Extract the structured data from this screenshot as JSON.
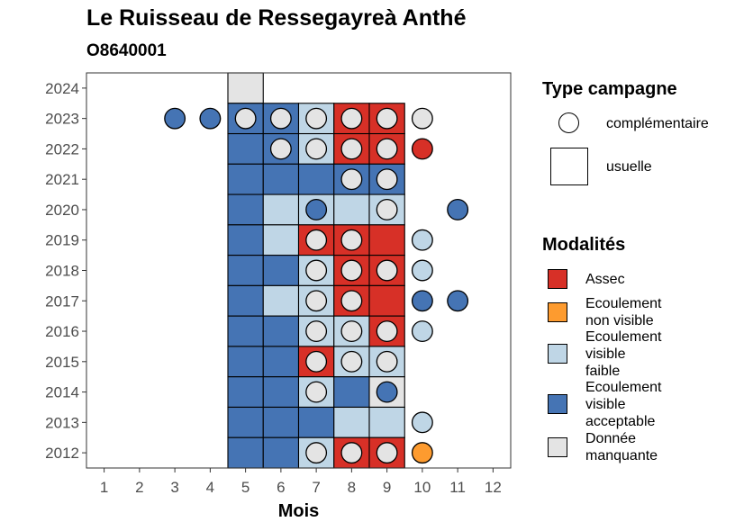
{
  "header": {
    "title": "Le Ruisseau de Ressegayreà Anthé",
    "subtitle": "O8640001"
  },
  "colors": {
    "Assec": "#d73027",
    "Ecoulement non visible": "#fd9b2f",
    "Ecoulement visible faible": "#bfd6e6",
    "Ecoulement visible acceptable": "#4574b4",
    "Donnée manquante": "#e4e4e4"
  },
  "legend_type": {
    "title": "Type campagne",
    "items": [
      {
        "shape": "circle",
        "label": "complémentaire"
      },
      {
        "shape": "square",
        "label": "usuelle"
      }
    ]
  },
  "legend_modalites": {
    "title": "Modalités",
    "items": [
      {
        "key": "Assec",
        "label": "Assec"
      },
      {
        "key": "Ecoulement non visible",
        "label": "Ecoulement\nnon visible"
      },
      {
        "key": "Ecoulement visible faible",
        "label": "Ecoulement\nvisible\nfaible"
      },
      {
        "key": "Ecoulement visible acceptable",
        "label": "Ecoulement\nvisible\nacceptable"
      },
      {
        "key": "Donnée manquante",
        "label": "Donnée\nmanquante"
      }
    ]
  },
  "chart_data": {
    "type": "heatmap",
    "xlabel": "Mois",
    "ylabel": "",
    "x_ticks": [
      1,
      2,
      3,
      4,
      5,
      6,
      7,
      8,
      9,
      10,
      11,
      12
    ],
    "y_ticks": [
      2012,
      2013,
      2014,
      2015,
      2016,
      2017,
      2018,
      2019,
      2020,
      2021,
      2022,
      2023,
      2024
    ],
    "xlim": [
      0.5,
      12.5
    ],
    "ylim": [
      2011.5,
      2024.5
    ],
    "usuelle": [
      {
        "year": 2024,
        "month": 5,
        "value": "Donnée manquante"
      },
      {
        "year": 2023,
        "month": 5,
        "value": "Ecoulement visible acceptable"
      },
      {
        "year": 2023,
        "month": 6,
        "value": "Ecoulement visible acceptable"
      },
      {
        "year": 2023,
        "month": 7,
        "value": "Ecoulement visible faible"
      },
      {
        "year": 2023,
        "month": 8,
        "value": "Assec"
      },
      {
        "year": 2023,
        "month": 9,
        "value": "Assec"
      },
      {
        "year": 2022,
        "month": 5,
        "value": "Ecoulement visible acceptable"
      },
      {
        "year": 2022,
        "month": 6,
        "value": "Ecoulement visible acceptable"
      },
      {
        "year": 2022,
        "month": 7,
        "value": "Ecoulement visible faible"
      },
      {
        "year": 2022,
        "month": 8,
        "value": "Assec"
      },
      {
        "year": 2022,
        "month": 9,
        "value": "Assec"
      },
      {
        "year": 2021,
        "month": 5,
        "value": "Ecoulement visible acceptable"
      },
      {
        "year": 2021,
        "month": 6,
        "value": "Ecoulement visible acceptable"
      },
      {
        "year": 2021,
        "month": 7,
        "value": "Ecoulement visible acceptable"
      },
      {
        "year": 2021,
        "month": 8,
        "value": "Ecoulement visible acceptable"
      },
      {
        "year": 2021,
        "month": 9,
        "value": "Ecoulement visible acceptable"
      },
      {
        "year": 2020,
        "month": 5,
        "value": "Ecoulement visible acceptable"
      },
      {
        "year": 2020,
        "month": 6,
        "value": "Ecoulement visible faible"
      },
      {
        "year": 2020,
        "month": 7,
        "value": "Ecoulement visible faible"
      },
      {
        "year": 2020,
        "month": 8,
        "value": "Ecoulement visible faible"
      },
      {
        "year": 2020,
        "month": 9,
        "value": "Ecoulement visible faible"
      },
      {
        "year": 2019,
        "month": 5,
        "value": "Ecoulement visible acceptable"
      },
      {
        "year": 2019,
        "month": 6,
        "value": "Ecoulement visible faible"
      },
      {
        "year": 2019,
        "month": 7,
        "value": "Assec"
      },
      {
        "year": 2019,
        "month": 8,
        "value": "Assec"
      },
      {
        "year": 2019,
        "month": 9,
        "value": "Assec"
      },
      {
        "year": 2018,
        "month": 5,
        "value": "Ecoulement visible acceptable"
      },
      {
        "year": 2018,
        "month": 6,
        "value": "Ecoulement visible acceptable"
      },
      {
        "year": 2018,
        "month": 7,
        "value": "Ecoulement visible faible"
      },
      {
        "year": 2018,
        "month": 8,
        "value": "Assec"
      },
      {
        "year": 2018,
        "month": 9,
        "value": "Assec"
      },
      {
        "year": 2017,
        "month": 5,
        "value": "Ecoulement visible acceptable"
      },
      {
        "year": 2017,
        "month": 6,
        "value": "Ecoulement visible faible"
      },
      {
        "year": 2017,
        "month": 7,
        "value": "Ecoulement visible faible"
      },
      {
        "year": 2017,
        "month": 8,
        "value": "Assec"
      },
      {
        "year": 2017,
        "month": 9,
        "value": "Assec"
      },
      {
        "year": 2016,
        "month": 5,
        "value": "Ecoulement visible acceptable"
      },
      {
        "year": 2016,
        "month": 6,
        "value": "Ecoulement visible acceptable"
      },
      {
        "year": 2016,
        "month": 7,
        "value": "Ecoulement visible faible"
      },
      {
        "year": 2016,
        "month": 8,
        "value": "Ecoulement visible faible"
      },
      {
        "year": 2016,
        "month": 9,
        "value": "Assec"
      },
      {
        "year": 2015,
        "month": 5,
        "value": "Ecoulement visible acceptable"
      },
      {
        "year": 2015,
        "month": 6,
        "value": "Ecoulement visible acceptable"
      },
      {
        "year": 2015,
        "month": 7,
        "value": "Assec"
      },
      {
        "year": 2015,
        "month": 8,
        "value": "Ecoulement visible faible"
      },
      {
        "year": 2015,
        "month": 9,
        "value": "Ecoulement visible faible"
      },
      {
        "year": 2014,
        "month": 5,
        "value": "Ecoulement visible acceptable"
      },
      {
        "year": 2014,
        "month": 6,
        "value": "Ecoulement visible acceptable"
      },
      {
        "year": 2014,
        "month": 7,
        "value": "Ecoulement visible faible"
      },
      {
        "year": 2014,
        "month": 8,
        "value": "Ecoulement visible acceptable"
      },
      {
        "year": 2014,
        "month": 9,
        "value": "Donnée manquante"
      },
      {
        "year": 2013,
        "month": 5,
        "value": "Ecoulement visible acceptable"
      },
      {
        "year": 2013,
        "month": 6,
        "value": "Ecoulement visible acceptable"
      },
      {
        "year": 2013,
        "month": 7,
        "value": "Ecoulement visible acceptable"
      },
      {
        "year": 2013,
        "month": 8,
        "value": "Ecoulement visible faible"
      },
      {
        "year": 2013,
        "month": 9,
        "value": "Ecoulement visible faible"
      },
      {
        "year": 2012,
        "month": 5,
        "value": "Ecoulement visible acceptable"
      },
      {
        "year": 2012,
        "month": 6,
        "value": "Ecoulement visible acceptable"
      },
      {
        "year": 2012,
        "month": 7,
        "value": "Ecoulement visible faible"
      },
      {
        "year": 2012,
        "month": 8,
        "value": "Assec"
      },
      {
        "year": 2012,
        "month": 9,
        "value": "Assec"
      }
    ],
    "complementaire": [
      {
        "year": 2023,
        "month": 3,
        "value": "Ecoulement visible acceptable"
      },
      {
        "year": 2023,
        "month": 4,
        "value": "Ecoulement visible acceptable"
      },
      {
        "year": 2023,
        "month": 5,
        "value": "Donnée manquante"
      },
      {
        "year": 2023,
        "month": 6,
        "value": "Donnée manquante"
      },
      {
        "year": 2023,
        "month": 7,
        "value": "Donnée manquante"
      },
      {
        "year": 2023,
        "month": 8,
        "value": "Donnée manquante"
      },
      {
        "year": 2023,
        "month": 9,
        "value": "Donnée manquante"
      },
      {
        "year": 2023,
        "month": 10,
        "value": "Donnée manquante"
      },
      {
        "year": 2022,
        "month": 6,
        "value": "Donnée manquante"
      },
      {
        "year": 2022,
        "month": 7,
        "value": "Donnée manquante"
      },
      {
        "year": 2022,
        "month": 8,
        "value": "Donnée manquante"
      },
      {
        "year": 2022,
        "month": 9,
        "value": "Donnée manquante"
      },
      {
        "year": 2022,
        "month": 10,
        "value": "Assec"
      },
      {
        "year": 2021,
        "month": 8,
        "value": "Donnée manquante"
      },
      {
        "year": 2021,
        "month": 9,
        "value": "Donnée manquante"
      },
      {
        "year": 2020,
        "month": 7,
        "value": "Ecoulement visible acceptable"
      },
      {
        "year": 2020,
        "month": 9,
        "value": "Donnée manquante"
      },
      {
        "year": 2020,
        "month": 11,
        "value": "Ecoulement visible acceptable"
      },
      {
        "year": 2019,
        "month": 7,
        "value": "Donnée manquante"
      },
      {
        "year": 2019,
        "month": 8,
        "value": "Donnée manquante"
      },
      {
        "year": 2019,
        "month": 10,
        "value": "Ecoulement visible faible"
      },
      {
        "year": 2018,
        "month": 7,
        "value": "Donnée manquante"
      },
      {
        "year": 2018,
        "month": 8,
        "value": "Donnée manquante"
      },
      {
        "year": 2018,
        "month": 9,
        "value": "Donnée manquante"
      },
      {
        "year": 2018,
        "month": 10,
        "value": "Ecoulement visible faible"
      },
      {
        "year": 2017,
        "month": 7,
        "value": "Donnée manquante"
      },
      {
        "year": 2017,
        "month": 8,
        "value": "Donnée manquante"
      },
      {
        "year": 2017,
        "month": 10,
        "value": "Ecoulement visible acceptable"
      },
      {
        "year": 2017,
        "month": 11,
        "value": "Ecoulement visible acceptable"
      },
      {
        "year": 2016,
        "month": 7,
        "value": "Donnée manquante"
      },
      {
        "year": 2016,
        "month": 8,
        "value": "Donnée manquante"
      },
      {
        "year": 2016,
        "month": 9,
        "value": "Donnée manquante"
      },
      {
        "year": 2016,
        "month": 10,
        "value": "Ecoulement visible faible"
      },
      {
        "year": 2015,
        "month": 7,
        "value": "Donnée manquante"
      },
      {
        "year": 2015,
        "month": 8,
        "value": "Donnée manquante"
      },
      {
        "year": 2015,
        "month": 9,
        "value": "Donnée manquante"
      },
      {
        "year": 2014,
        "month": 7,
        "value": "Donnée manquante"
      },
      {
        "year": 2014,
        "month": 9,
        "value": "Ecoulement visible acceptable"
      },
      {
        "year": 2013,
        "month": 10,
        "value": "Ecoulement visible faible"
      },
      {
        "year": 2012,
        "month": 7,
        "value": "Donnée manquante"
      },
      {
        "year": 2012,
        "month": 8,
        "value": "Donnée manquante"
      },
      {
        "year": 2012,
        "month": 9,
        "value": "Donnée manquante"
      },
      {
        "year": 2012,
        "month": 10,
        "value": "Ecoulement non visible"
      }
    ]
  }
}
